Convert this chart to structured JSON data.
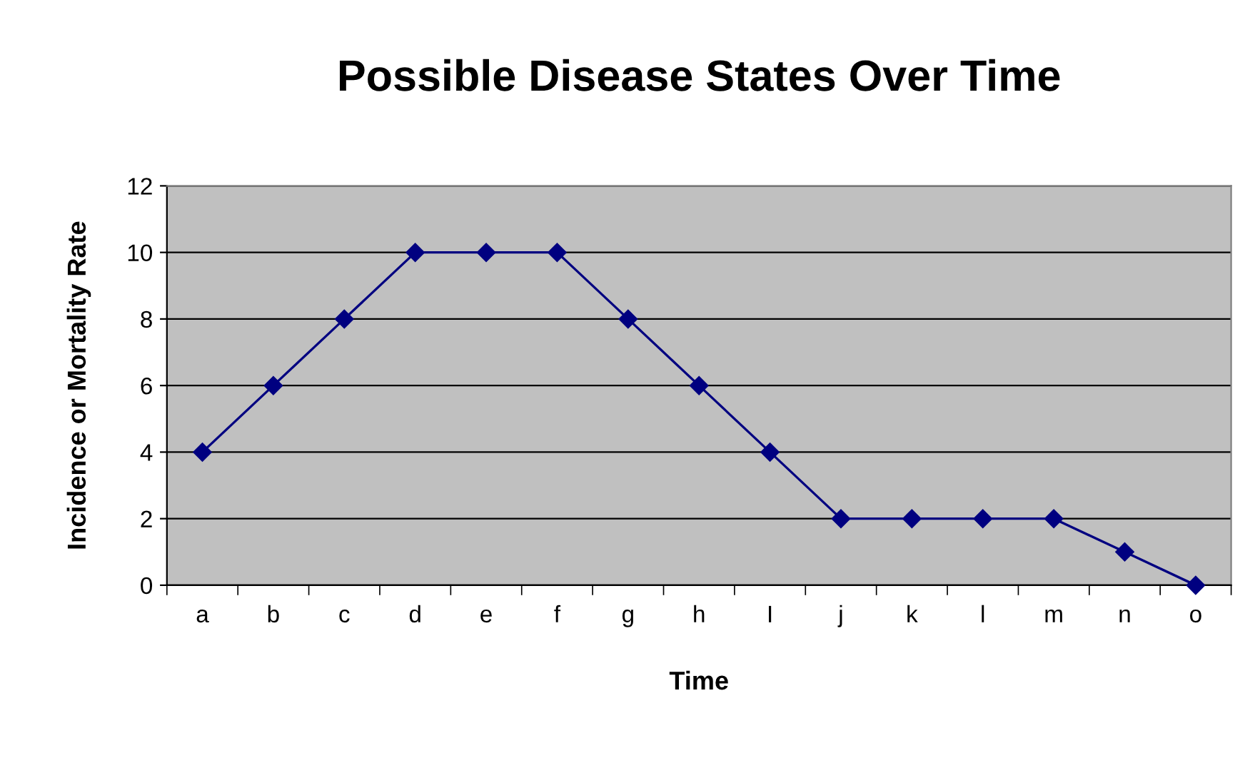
{
  "chart_data": {
    "type": "line",
    "title": "Possible Disease States Over Time",
    "xlabel": "Time",
    "ylabel": "Incidence or Mortality Rate",
    "categories": [
      "a",
      "b",
      "c",
      "d",
      "e",
      "f",
      "g",
      "h",
      "I",
      "j",
      "k",
      "l",
      "m",
      "n",
      "o"
    ],
    "series": [
      {
        "color": "#000080",
        "values": [
          4,
          6,
          8,
          10,
          10,
          10,
          8,
          6,
          4,
          2,
          2,
          2,
          2,
          1,
          0
        ]
      }
    ],
    "ylim": [
      0,
      12
    ],
    "yticks": [
      0,
      2,
      4,
      6,
      8,
      10,
      12
    ],
    "grid": "y",
    "marker": "diamond",
    "line_style": "solid",
    "legend": false
  }
}
